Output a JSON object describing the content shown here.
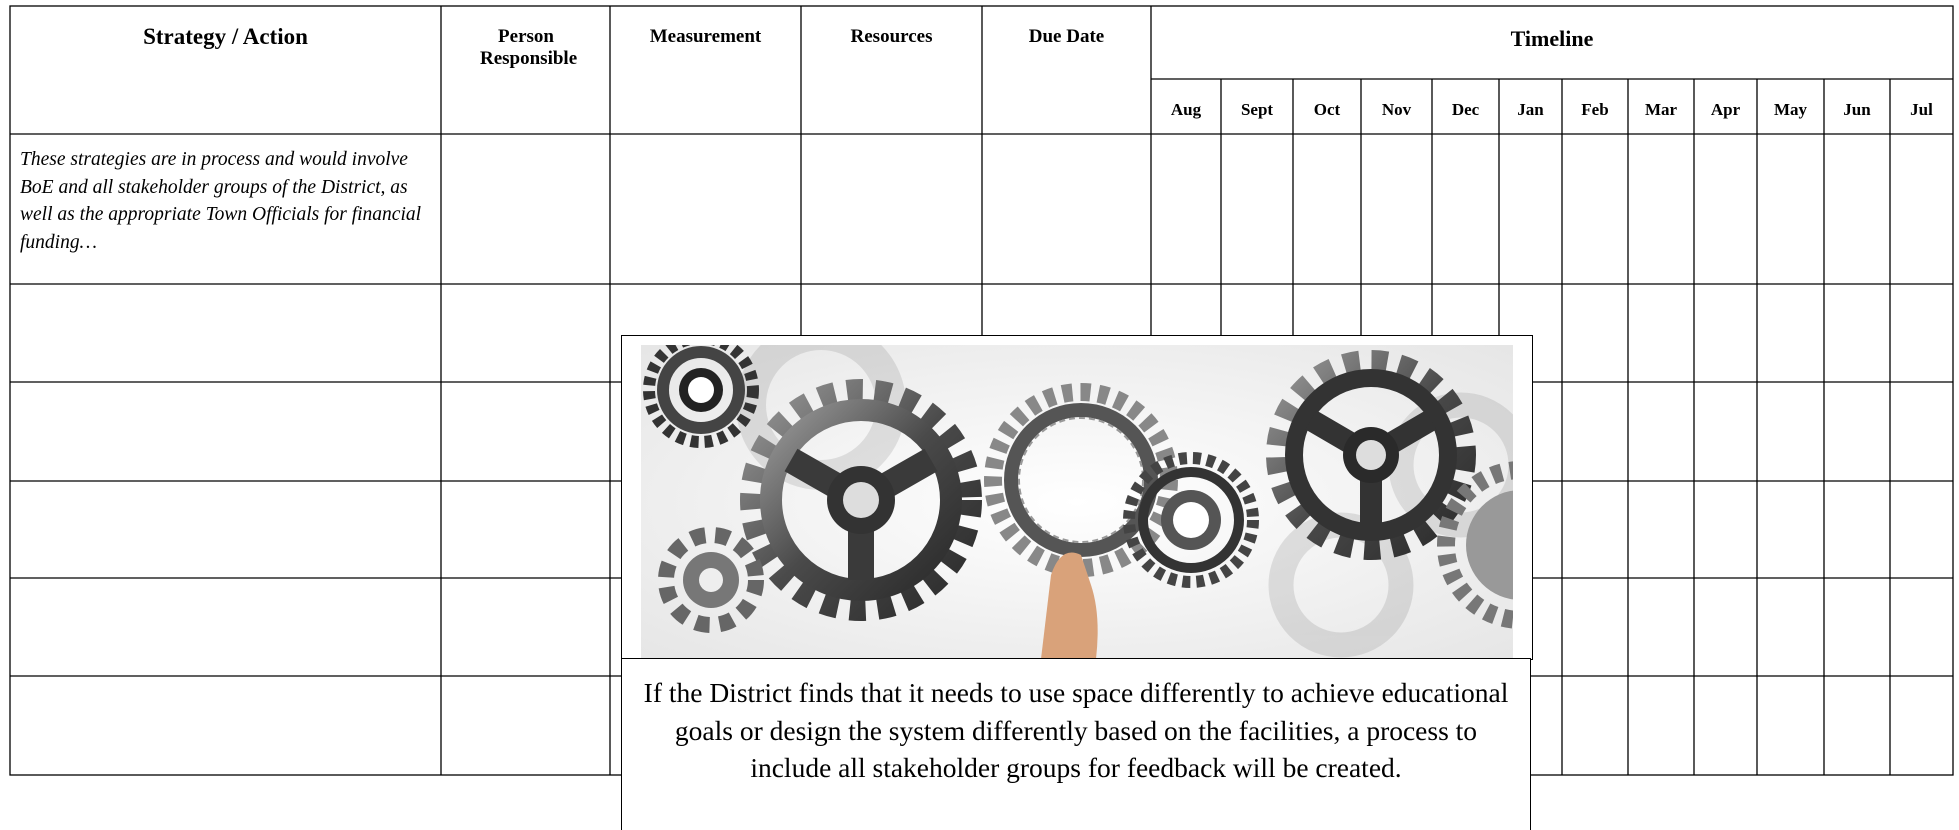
{
  "table": {
    "headers": [
      "Strategy / Action",
      "Person Responsible",
      "Measurement",
      "Resources",
      "Due Date",
      "Timeline"
    ],
    "months": [
      "Aug",
      "Sept",
      "Oct",
      "Nov",
      "Dec",
      "Jan",
      "Feb",
      "Mar",
      "Apr",
      "May",
      "Jun",
      "Jul"
    ],
    "rows": [
      [
        "These strategies are in process and would involve BoE and all stakeholder groups of the District, as well as the appropriate Town Officials for financial funding…"
      ]
    ]
  },
  "caption": "If the District finds that it needs to use space differently to achieve educational goals or design the system differently based on the facilities, a process to include all stakeholder groups for feedback will be created."
}
